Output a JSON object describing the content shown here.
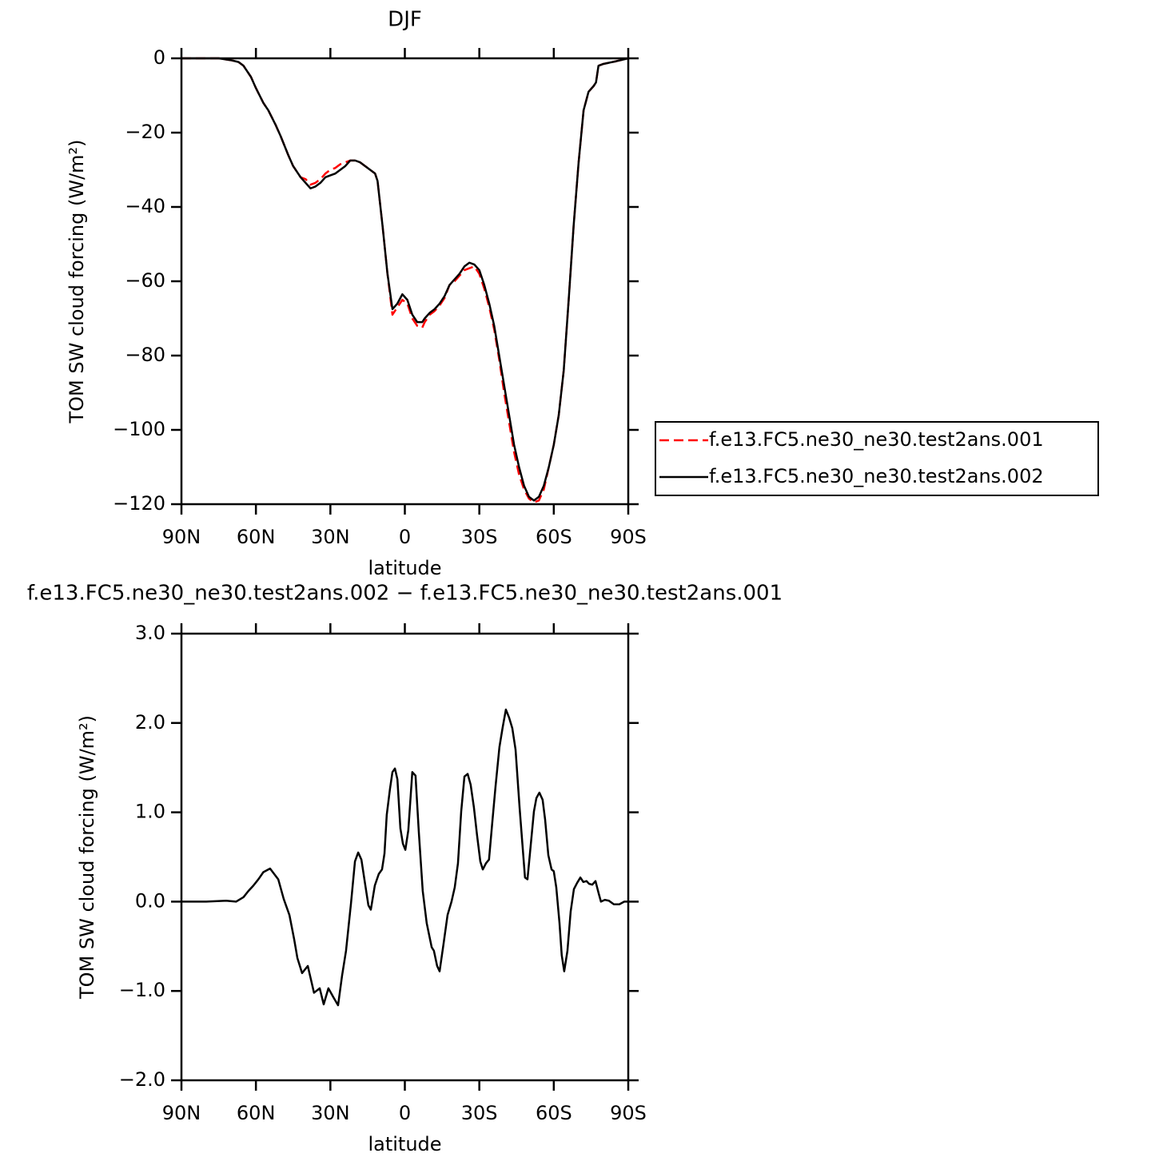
{
  "chart_data": [
    {
      "type": "line",
      "title": "DJF",
      "ylabel": "TOM SW cloud forcing (W/m²)",
      "xlabel": "latitude",
      "xlim": [
        90,
        -90
      ],
      "xticks": [
        {
          "value": 90,
          "label": "90N"
        },
        {
          "value": 60,
          "label": "60N"
        },
        {
          "value": 30,
          "label": "30N"
        },
        0,
        {
          "value": -30,
          "label": "30S"
        },
        {
          "value": -60,
          "label": "60S"
        },
        {
          "value": -90,
          "label": "90S"
        }
      ],
      "ylim": [
        -120,
        0
      ],
      "yticks": [
        0,
        {
          "value": -20,
          "label": "−20"
        },
        {
          "value": -40,
          "label": "−40"
        },
        {
          "value": -60,
          "label": "−60"
        },
        {
          "value": -80,
          "label": "−80"
        },
        {
          "value": -100,
          "label": "−100"
        },
        {
          "value": -120,
          "label": "−120"
        }
      ],
      "legend": "right",
      "x": [
        90,
        85,
        80,
        75,
        70,
        67,
        65,
        62,
        60,
        57,
        55,
        52,
        50,
        47,
        45,
        42,
        40,
        38,
        36,
        34,
        32,
        30,
        28,
        26,
        24,
        22,
        20,
        18,
        16,
        14,
        12,
        11,
        9,
        7,
        5,
        3,
        1,
        -1,
        -3,
        -5,
        -7,
        -8,
        -10,
        -12,
        -14,
        -16,
        -18,
        -20,
        -22,
        -24,
        -26,
        -28,
        -30,
        -32,
        -34,
        -36,
        -38,
        -40,
        -42,
        -44,
        -46,
        -48,
        -50,
        -52,
        -54,
        -56,
        -58,
        -60,
        -62,
        -64,
        -66,
        -68,
        -70,
        -72,
        -74,
        -76,
        -77,
        -78,
        -80,
        -85,
        -90
      ],
      "series": [
        {
          "name": "f.e13.FC5.ne30_ne30.test2ans.001",
          "color": "#ff0000",
          "linestyle": "dashed",
          "values": [
            0,
            0,
            0,
            0,
            -0.5,
            -1,
            -2,
            -5,
            -8,
            -12,
            -14,
            -18,
            -21,
            -26,
            -29,
            -32,
            -32.5,
            -34,
            -33.5,
            -32.5,
            -31,
            -30,
            -29.5,
            -28.5,
            -28,
            -27.5,
            -27.5,
            -28,
            -29,
            -30,
            -31,
            -33,
            -45,
            -58,
            -69,
            -67,
            -65,
            -66,
            -70,
            -72,
            -72.5,
            -71,
            -69,
            -68,
            -66.5,
            -64.5,
            -61,
            -60,
            -58.5,
            -57,
            -56.5,
            -56,
            -58,
            -62,
            -67,
            -73,
            -81,
            -90,
            -98,
            -106,
            -112,
            -116,
            -118.5,
            -119.5,
            -119,
            -116,
            -110,
            -104,
            -96,
            -84,
            -65,
            -45,
            -28,
            -14,
            -9,
            -7.5,
            -6.5,
            -2,
            -1.5,
            -0.8,
            0
          ]
        },
        {
          "name": "f.e13.FC5.ne30_ne30.test2ans.002",
          "color": "#000000",
          "linestyle": "solid",
          "values": [
            0,
            0,
            0,
            0,
            -0.5,
            -1,
            -2,
            -5,
            -8,
            -12,
            -14,
            -18,
            -21,
            -26,
            -29,
            -32,
            -33.5,
            -35,
            -34.5,
            -33.5,
            -32,
            -31.5,
            -31,
            -30,
            -29,
            -27.5,
            -27.5,
            -28,
            -29,
            -30,
            -31,
            -33,
            -45,
            -58,
            -67.5,
            -66,
            -63.5,
            -65,
            -69,
            -71,
            -71,
            -70,
            -68.5,
            -67.5,
            -66,
            -64,
            -61,
            -59.5,
            -58,
            -56,
            -55,
            -55.5,
            -57,
            -61,
            -66,
            -72,
            -80,
            -88,
            -96,
            -104,
            -110,
            -115,
            -118,
            -119,
            -118,
            -115,
            -110,
            -104,
            -96,
            -84,
            -65,
            -45,
            -28,
            -14,
            -9,
            -7.5,
            -6.5,
            -2,
            -1.5,
            -0.8,
            0
          ]
        }
      ]
    },
    {
      "type": "line",
      "title": "f.e13.FC5.ne30_ne30.test2ans.002 − f.e13.FC5.ne30_ne30.test2ans.001",
      "ylabel": "TOM SW cloud forcing (W/m²)",
      "xlabel": "latitude",
      "xlim": [
        90,
        -90
      ],
      "xticks": [
        {
          "value": 90,
          "label": "90N"
        },
        {
          "value": 60,
          "label": "60N"
        },
        {
          "value": 30,
          "label": "30N"
        },
        0,
        {
          "value": -30,
          "label": "30S"
        },
        {
          "value": -60,
          "label": "60S"
        },
        {
          "value": -90,
          "label": "90S"
        }
      ],
      "ylim": [
        -2,
        3
      ],
      "yticks": [
        {
          "value": 3,
          "label": "3.0"
        },
        {
          "value": 2,
          "label": "2.0"
        },
        {
          "value": 1,
          "label": "1.0"
        },
        {
          "value": 0,
          "label": "0.0"
        },
        {
          "value": -1,
          "label": "−1.0"
        },
        {
          "value": -2,
          "label": "−2.0"
        }
      ],
      "x": [
        90,
        80,
        72,
        68,
        65,
        63,
        61,
        59,
        57,
        54.3,
        51,
        48.8,
        46.5,
        44.6,
        43.3,
        41.4,
        39.1,
        36.6,
        34.3,
        32.7,
        30.8,
        28.8,
        26.9,
        25.3,
        23.7,
        21.7,
        20.1,
        18.8,
        17.5,
        16.3,
        14.7,
        13.7,
        12.1,
        10.5,
        9.2,
        8.2,
        7.3,
        6,
        5,
        4,
        3,
        1.8,
        0.8,
        -0.2,
        -1.4,
        -3,
        -4.3,
        -5.6,
        -7.2,
        -8.8,
        -10.8,
        -11.7,
        -13,
        -14,
        -15.6,
        -17.2,
        -18.8,
        -20.1,
        -21.4,
        -22.7,
        -24,
        -25.3,
        -26.5,
        -27.8,
        -29.1,
        -30.4,
        -31.4,
        -32.7,
        -33.9,
        -35.2,
        -36.5,
        -38.1,
        -39.4,
        -40.7,
        -42,
        -43.3,
        -44.6,
        -46.2,
        -47.2,
        -48.4,
        -49.4,
        -50.7,
        -52,
        -53,
        -54.2,
        -55.5,
        -56.5,
        -57.8,
        -59.1,
        -60,
        -61,
        -62.3,
        -63.2,
        -64.2,
        -65.5,
        -66.8,
        -68.1,
        -69.4,
        -70.7,
        -71.9,
        -73.2,
        -74.2,
        -75.5,
        -76.8,
        -78.1,
        -79,
        -80.6,
        -82.2,
        -84.2,
        -86.4,
        -88.4,
        -90
      ],
      "series": [
        {
          "color": "#000000",
          "linestyle": "solid",
          "values": [
            0,
            0,
            0.01,
            0,
            0.05,
            0.12,
            0.18,
            0.25,
            0.33,
            0.37,
            0.25,
            0.03,
            -0.15,
            -0.42,
            -0.63,
            -0.8,
            -0.72,
            -1.02,
            -0.97,
            -1.15,
            -0.97,
            -1.07,
            -1.16,
            -0.83,
            -0.55,
            -0.02,
            0.45,
            0.55,
            0.47,
            0.25,
            -0.04,
            -0.09,
            0.18,
            0.31,
            0.36,
            0.54,
            0.97,
            1.26,
            1.45,
            1.49,
            1.37,
            0.82,
            0.65,
            0.58,
            0.8,
            1.45,
            1.41,
            0.79,
            0.12,
            -0.24,
            -0.51,
            -0.55,
            -0.72,
            -0.78,
            -0.47,
            -0.15,
            0,
            0.16,
            0.43,
            1.01,
            1.4,
            1.43,
            1.31,
            1.06,
            0.74,
            0.45,
            0.36,
            0.43,
            0.47,
            0.88,
            1.28,
            1.73,
            1.95,
            2.15,
            2.06,
            1.94,
            1.7,
            1.06,
            0.7,
            0.27,
            0.25,
            0.63,
            1.01,
            1.16,
            1.22,
            1.14,
            0.92,
            0.52,
            0.36,
            0.34,
            0.16,
            -0.24,
            -0.6,
            -0.78,
            -0.55,
            -0.11,
            0.14,
            0.21,
            0.27,
            0.22,
            0.23,
            0.2,
            0.19,
            0.23,
            0.09,
            0,
            0.02,
            0.01,
            -0.03,
            -0.03,
            0,
            0
          ]
        }
      ]
    }
  ]
}
